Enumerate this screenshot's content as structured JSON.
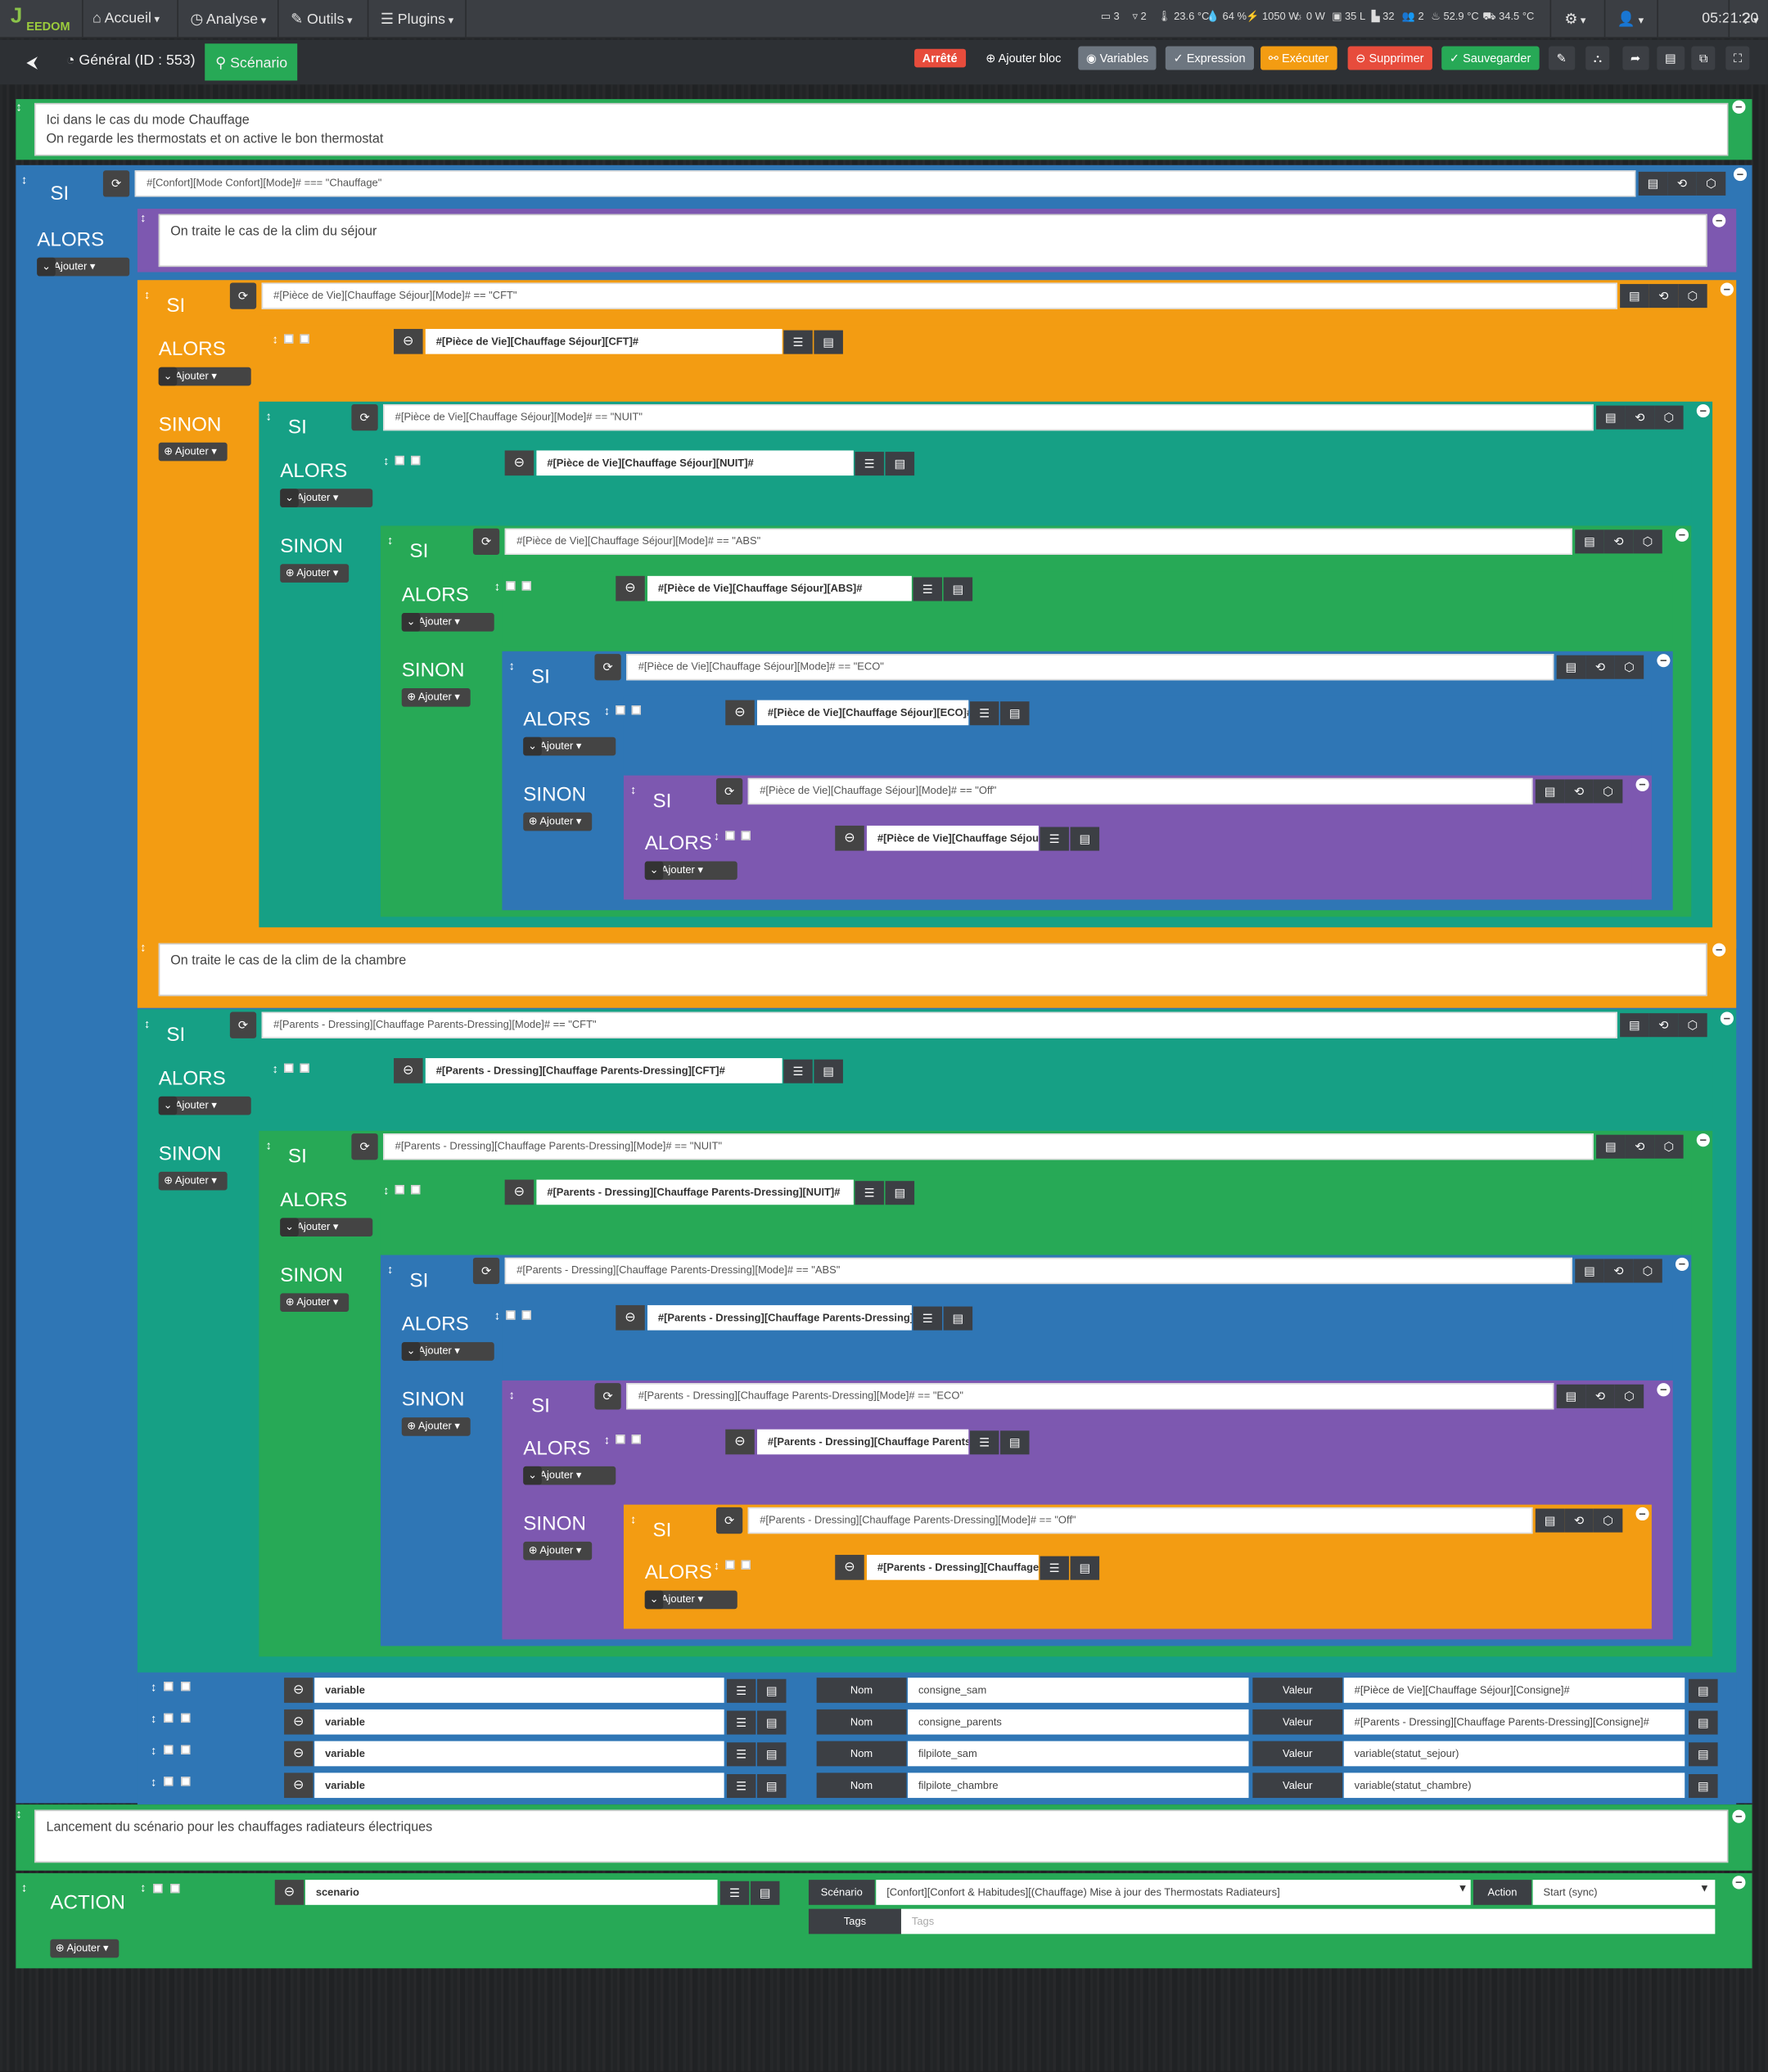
{
  "nav": {
    "logo": "EEDOM",
    "accueil": "Accueil",
    "analyse": "Analyse",
    "outils": "Outils",
    "plugins": "Plugins",
    "stats": [
      "3",
      "2",
      "23.6 °C",
      "64 %",
      "1050 W",
      "0 W",
      "35 L",
      "32",
      "2",
      "52.9 °C",
      "34.5 °C"
    ],
    "time": "05:21:20"
  },
  "toolbar": {
    "general": "Général (ID : 553)",
    "scenario": "Scénario",
    "status": "Arrêté",
    "add_block": "Ajouter bloc",
    "variables": "Variables",
    "expression": "Expression",
    "executer": "Exécuter",
    "supprimer": "Supprimer",
    "sauvegarder": "Sauvegarder"
  },
  "kw": {
    "si": "SI",
    "alors": "ALORS",
    "sinon": "SINON",
    "action": "ACTION",
    "ajouter": "Ajouter"
  },
  "comments": [
    "Ici dans le cas du mode Chauffage\nOn regarde les thermostats et on active le bon thermostat",
    "On traite le cas de la clim du séjour",
    "On traite le cas de la clim de la chambre",
    "Lancement du scénario pour les chauffages radiateurs électriques"
  ],
  "conditions": [
    "#[Confort][Mode Confort][Mode]# === \"Chauffage\"",
    "#[Pièce de Vie][Chauffage Séjour][Mode]# == \"CFT\"",
    "#[Pièce de Vie][Chauffage Séjour][Mode]# == \"NUIT\"",
    "#[Pièce de Vie][Chauffage Séjour][Mode]# == \"ABS\"",
    "#[Pièce de Vie][Chauffage Séjour][Mode]# == \"ECO\"",
    "#[Pièce de Vie][Chauffage Séjour][Mode]# == \"Off\"",
    "#[Parents - Dressing][Chauffage Parents-Dressing][Mode]# == \"CFT\"",
    "#[Parents - Dressing][Chauffage Parents-Dressing][Mode]# == \"NUIT\"",
    "#[Parents - Dressing][Chauffage Parents-Dressing][Mode]# == \"ABS\"",
    "#[Parents - Dressing][Chauffage Parents-Dressing][Mode]# == \"ECO\"",
    "#[Parents - Dressing][Chauffage Parents-Dressing][Mode]# == \"Off\""
  ],
  "actions": [
    "#[Pièce de Vie][Chauffage Séjour][CFT]#",
    "#[Pièce de Vie][Chauffage Séjour][NUIT]#",
    "#[Pièce de Vie][Chauffage Séjour][ABS]#",
    "#[Pièce de Vie][Chauffage Séjour][ECO]#",
    "#[Pièce de Vie][Chauffage Séjour][Off]#",
    "#[Parents - Dressing][Chauffage Parents-Dressing][CFT]#",
    "#[Parents - Dressing][Chauffage Parents-Dressing][NUIT]#",
    "#[Parents - Dressing][Chauffage Parents-Dressing][ABS]#",
    "#[Parents - Dressing][Chauffage Parents-Dressing][ECO]#",
    "#[Parents - Dressing][Chauffage Parents-Dressing][Off]#"
  ],
  "variables": {
    "cmd": "variable",
    "nom_label": "Nom",
    "valeur_label": "Valeur",
    "rows": [
      {
        "nom": "consigne_sam",
        "valeur": "#[Pièce de Vie][Chauffage Séjour][Consigne]#"
      },
      {
        "nom": "consigne_parents",
        "valeur": "#[Parents - Dressing][Chauffage Parents-Dressing][Consigne]#"
      },
      {
        "nom": "filpilote_sam",
        "valeur": "variable(statut_sejour)"
      },
      {
        "nom": "filpilote_chambre",
        "valeur": "variable(statut_chambre)"
      }
    ]
  },
  "final": {
    "cmd": "scenario",
    "scenario_label": "Scénario",
    "scenario_value": "[Confort][Confort & Habitudes][(Chauffage) Mise à jour des Thermostats Radiateurs]",
    "action_label": "Action",
    "action_value": "Start (sync)",
    "tags_label": "Tags",
    "tags_placeholder": "Tags"
  },
  "colors": {
    "green": "#27a956",
    "blue": "#2f76b5",
    "orange": "#f39c12",
    "purple": "#7d58b0",
    "teal": "#16a085",
    "navy": "#16567f"
  }
}
